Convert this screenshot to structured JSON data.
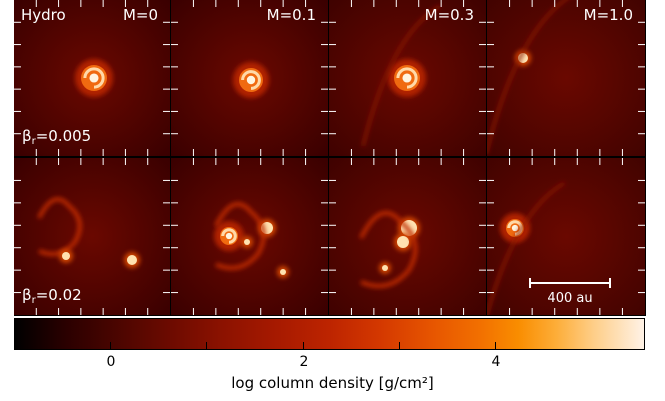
{
  "panels": {
    "top": [
      {
        "label_left": "Hydro",
        "label_right": "M=0",
        "beta_prefix": "β",
        "beta_sub": "r",
        "beta_value": "=0.005"
      },
      {
        "label_right": "M=0.1"
      },
      {
        "label_right": "M=0.3"
      },
      {
        "label_right": "M=1.0"
      }
    ],
    "bottom": [
      {
        "beta_prefix": "β",
        "beta_sub": "r",
        "beta_value": "=0.02"
      },
      {},
      {},
      {
        "scalebar_label": "400 au"
      }
    ]
  },
  "colorbar": {
    "tick_labels": [
      "0",
      "2",
      "4"
    ],
    "title": "log column density [g/cm²]",
    "colors": [
      "#000000",
      "#6a0a00",
      "#bd2400",
      "#f27000",
      "#fff2e6"
    ]
  }
}
